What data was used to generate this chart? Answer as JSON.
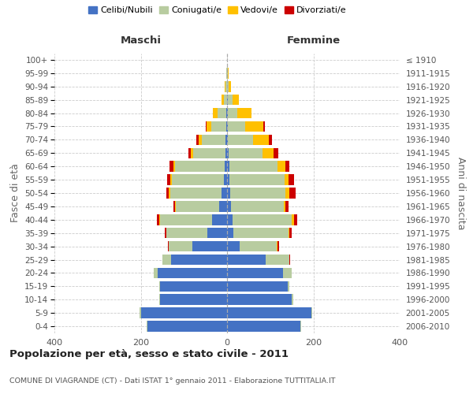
{
  "age_groups": [
    "0-4",
    "5-9",
    "10-14",
    "15-19",
    "20-24",
    "25-29",
    "30-34",
    "35-39",
    "40-44",
    "45-49",
    "50-54",
    "55-59",
    "60-64",
    "65-69",
    "70-74",
    "75-79",
    "80-84",
    "85-89",
    "90-94",
    "95-99",
    "100+"
  ],
  "birth_years": [
    "2006-2010",
    "2001-2005",
    "1996-2000",
    "1991-1995",
    "1986-1990",
    "1981-1985",
    "1976-1980",
    "1971-1975",
    "1966-1970",
    "1961-1965",
    "1956-1960",
    "1951-1955",
    "1946-1950",
    "1941-1945",
    "1936-1940",
    "1931-1935",
    "1926-1930",
    "1921-1925",
    "1916-1920",
    "1911-1915",
    "≤ 1910"
  ],
  "males": {
    "celibe": [
      185,
      200,
      155,
      155,
      160,
      130,
      80,
      45,
      35,
      18,
      12,
      8,
      5,
      4,
      3,
      2,
      2,
      0,
      0,
      0,
      0
    ],
    "coniugato": [
      2,
      3,
      2,
      2,
      10,
      20,
      55,
      95,
      120,
      100,
      120,
      120,
      115,
      75,
      55,
      35,
      20,
      8,
      3,
      1,
      0
    ],
    "vedovo": [
      0,
      0,
      0,
      0,
      0,
      0,
      1,
      1,
      2,
      2,
      3,
      3,
      5,
      5,
      8,
      10,
      10,
      5,
      2,
      0,
      0
    ],
    "divorziato": [
      0,
      0,
      0,
      0,
      0,
      0,
      1,
      3,
      5,
      5,
      5,
      8,
      8,
      5,
      5,
      3,
      0,
      0,
      0,
      0,
      0
    ]
  },
  "females": {
    "nubile": [
      170,
      195,
      150,
      140,
      130,
      90,
      30,
      15,
      12,
      10,
      8,
      5,
      5,
      4,
      2,
      2,
      2,
      2,
      0,
      0,
      0
    ],
    "coniugata": [
      2,
      2,
      3,
      5,
      20,
      55,
      85,
      128,
      138,
      122,
      128,
      128,
      112,
      78,
      58,
      40,
      22,
      10,
      4,
      1,
      0
    ],
    "vedova": [
      0,
      0,
      0,
      0,
      0,
      0,
      2,
      2,
      5,
      3,
      8,
      10,
      18,
      26,
      36,
      42,
      32,
      16,
      6,
      2,
      0
    ],
    "divorziata": [
      0,
      0,
      0,
      0,
      0,
      2,
      3,
      5,
      8,
      8,
      15,
      12,
      10,
      10,
      8,
      3,
      0,
      0,
      0,
      0,
      0
    ]
  },
  "colors": {
    "celibe": "#4472c4",
    "coniugato": "#b8cca0",
    "vedovo": "#ffc000",
    "divorziato": "#cc0000"
  },
  "legend_labels": [
    "Celibi/Nubili",
    "Coniugati/e",
    "Vedovi/e",
    "Divorziati/e"
  ],
  "title": "Popolazione per età, sesso e stato civile - 2011",
  "subtitle": "COMUNE DI VIAGRANDE (CT) - Dati ISTAT 1° gennaio 2011 - Elaborazione TUTTITALIA.IT",
  "ylabel_left": "Fasce di età",
  "ylabel_right": "Anni di nascita",
  "xlabel_maschi": "Maschi",
  "xlabel_femmine": "Femmine",
  "xlim": 400,
  "background_color": "#ffffff",
  "grid_color": "#cccccc"
}
